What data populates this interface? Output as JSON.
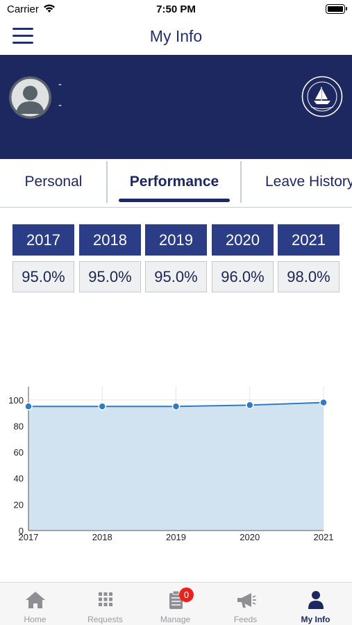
{
  "status_bar": {
    "carrier": "Carrier",
    "time": "7:50 PM"
  },
  "nav": {
    "title": "My Info"
  },
  "profile": {
    "line1": "-",
    "line2": "-"
  },
  "tabs": [
    {
      "label": "Personal",
      "active": false
    },
    {
      "label": "Performance",
      "active": true
    },
    {
      "label": "Leave History",
      "active": false
    }
  ],
  "performance": {
    "years": [
      "2017",
      "2018",
      "2019",
      "2020",
      "2021"
    ],
    "values": [
      "95.0%",
      "95.0%",
      "95.0%",
      "96.0%",
      "98.0%"
    ]
  },
  "chart_data": {
    "type": "area",
    "x": [
      "2017",
      "2018",
      "2019",
      "2020",
      "2021"
    ],
    "series": [
      {
        "values": [
          95,
          95,
          95,
          96,
          98
        ]
      }
    ],
    "ylim": [
      0,
      110
    ],
    "yticks": [
      0,
      20,
      40,
      60,
      80,
      100
    ],
    "grid": true,
    "title": "",
    "xlabel": "",
    "ylabel": "",
    "line_color": "#2f7bbf",
    "fill_color": "#d1e3f1"
  },
  "bottom_tabs": [
    {
      "label": "Home",
      "icon": "home-icon",
      "active": false
    },
    {
      "label": "Requests",
      "icon": "grid-icon",
      "active": false
    },
    {
      "label": "Manage",
      "icon": "clipboard-icon",
      "active": false,
      "badge": "0"
    },
    {
      "label": "Feeds",
      "icon": "megaphone-icon",
      "active": false
    },
    {
      "label": "My Info",
      "icon": "person-icon",
      "active": true
    }
  ],
  "colors": {
    "brand": "#1d2861",
    "year_header": "#2b3d86",
    "badge": "#e8231e"
  }
}
